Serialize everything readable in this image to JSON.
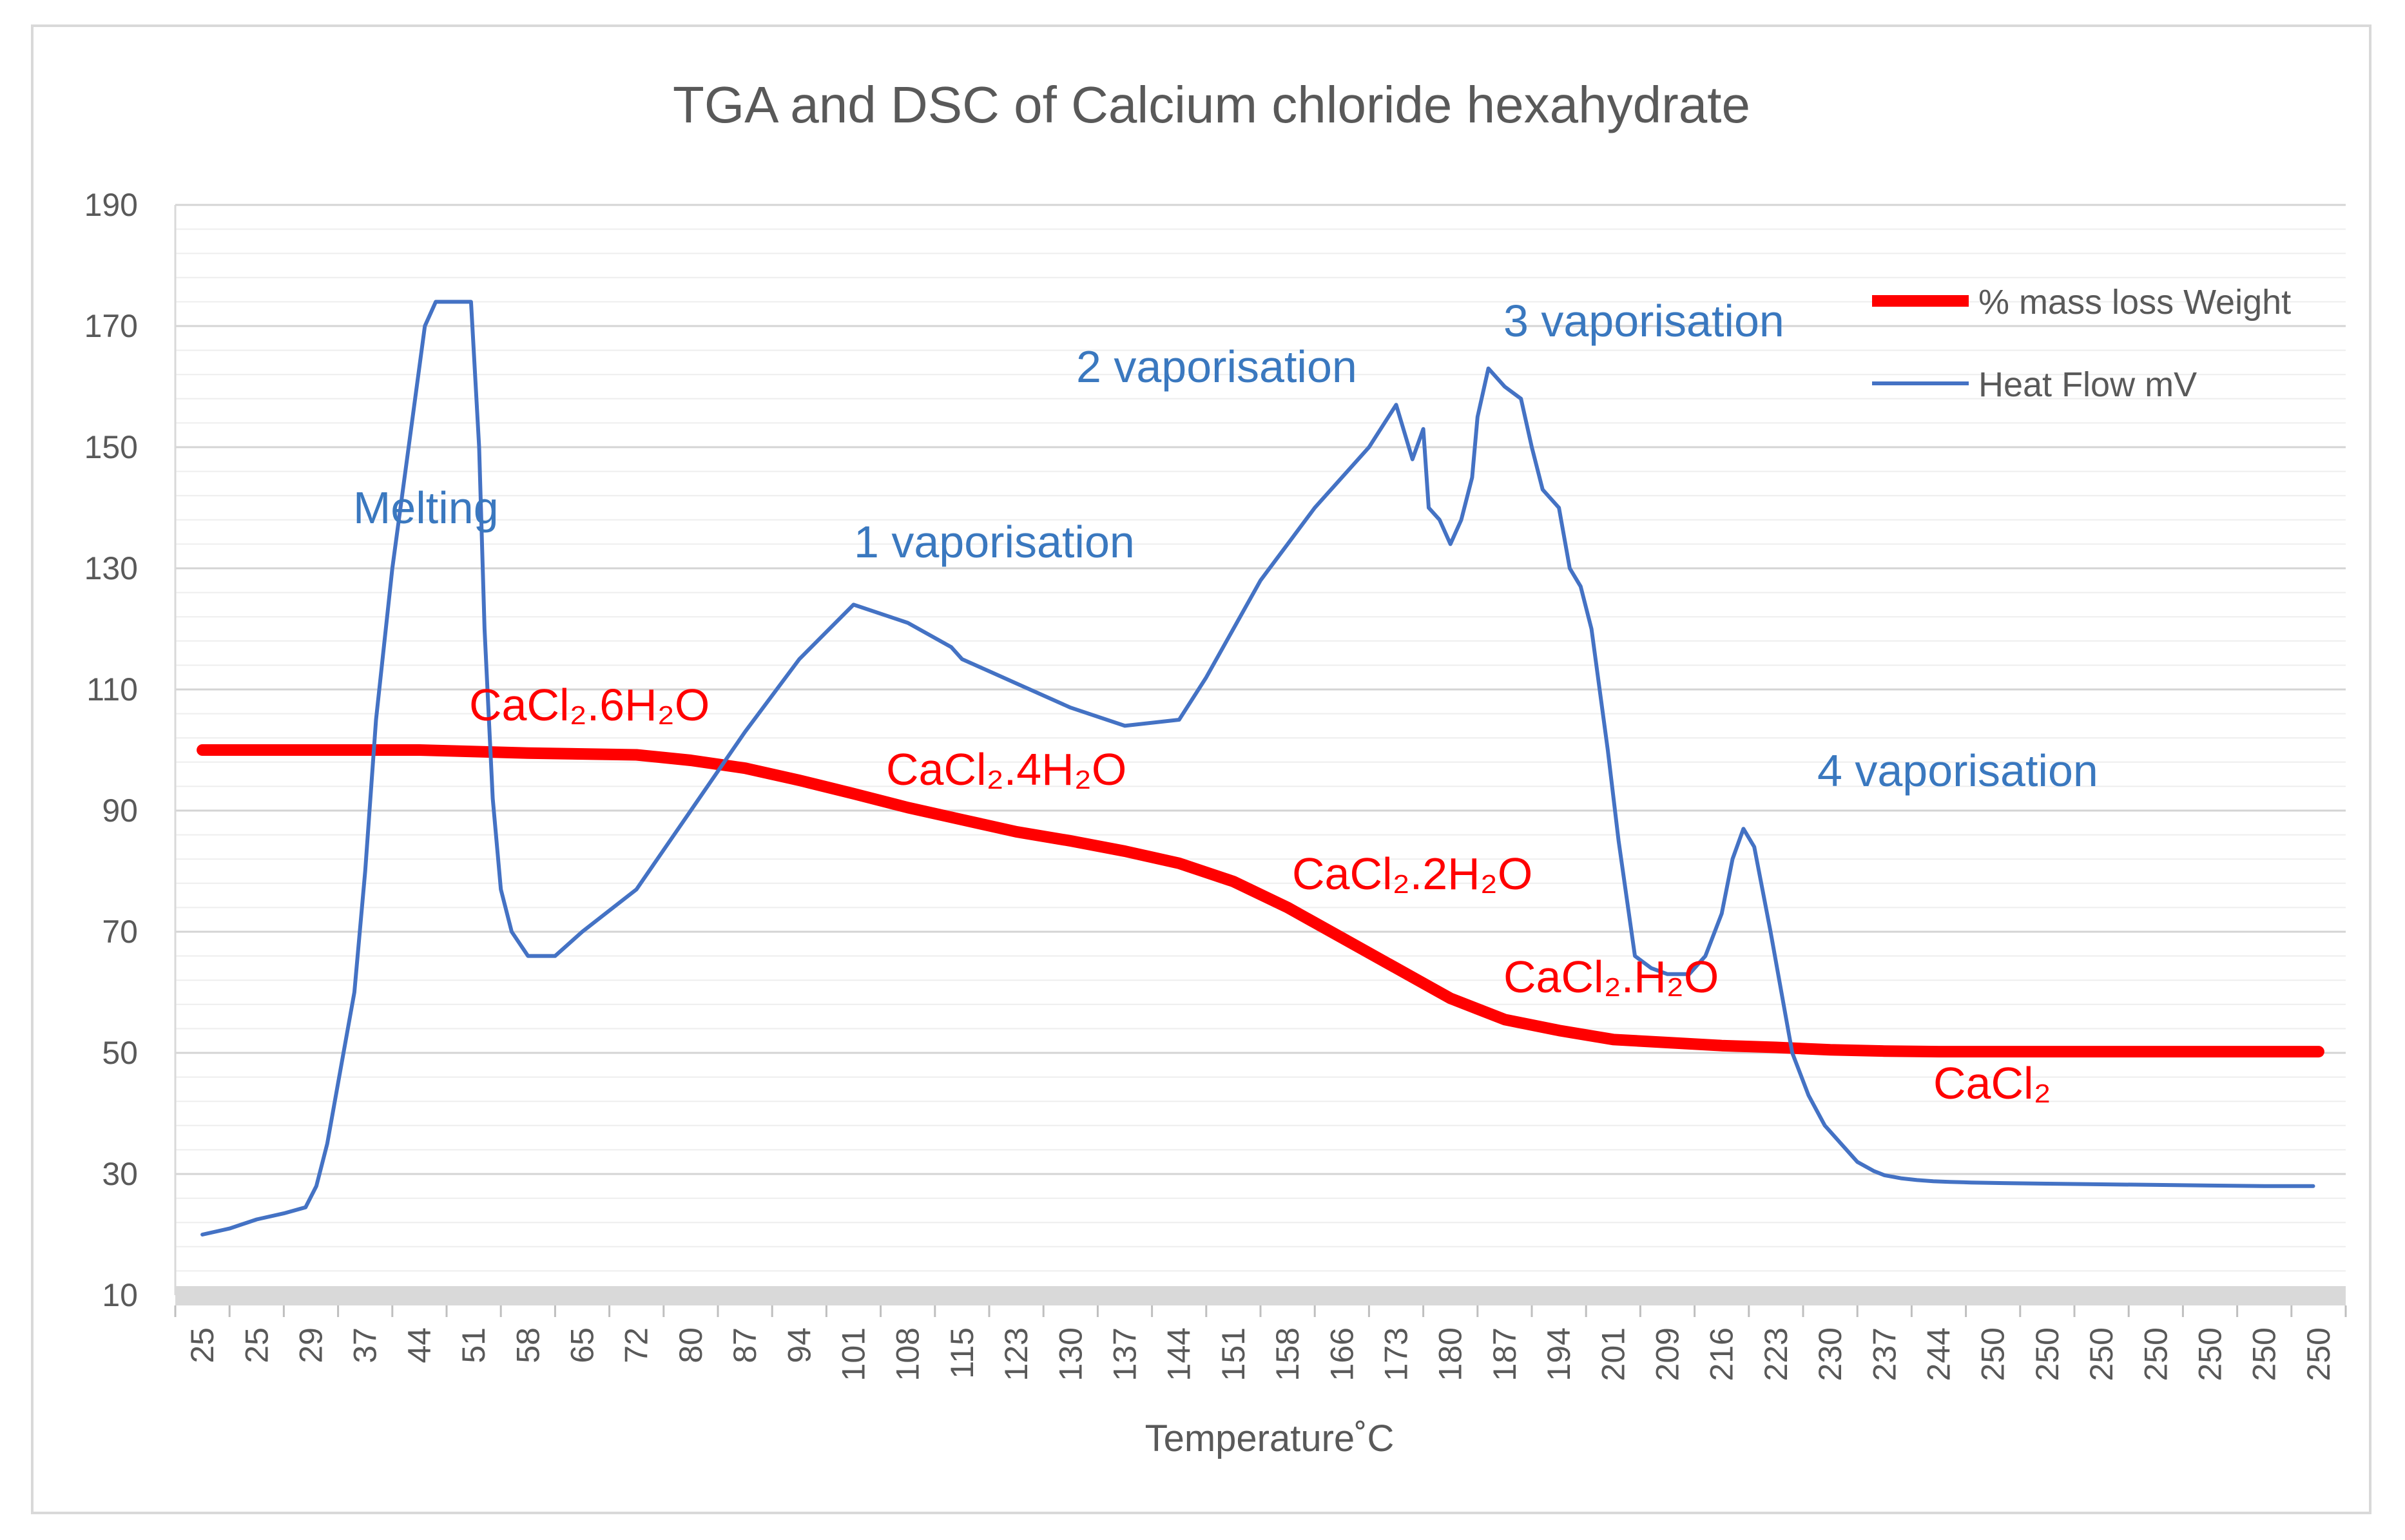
{
  "chart_data": {
    "type": "line",
    "title": "TGA and DSC of Calcium chloride hexahydrate",
    "xlabel": "Temperature˚C",
    "ylabel": "",
    "ylim": [
      10,
      190
    ],
    "yticks": [
      10,
      30,
      50,
      70,
      90,
      110,
      130,
      150,
      170,
      190
    ],
    "x_tick_labels": [
      "25",
      "25",
      "29",
      "37",
      "44",
      "51",
      "58",
      "65",
      "72",
      "80",
      "87",
      "94",
      "101",
      "108",
      "115",
      "123",
      "130",
      "137",
      "144",
      "151",
      "158",
      "166",
      "173",
      "180",
      "187",
      "194",
      "201",
      "209",
      "216",
      "223",
      "230",
      "237",
      "244",
      "250",
      "250",
      "250",
      "250",
      "250",
      "250",
      "250"
    ],
    "grid": true,
    "legend_position": "top-right",
    "series": [
      {
        "name": "% mass loss Weight",
        "color": "#ff0000",
        "x_index": [
          0,
          2,
          4,
          6,
          8,
          9,
          10,
          11,
          12,
          13,
          14,
          15,
          16,
          17,
          18,
          19,
          20,
          21,
          22,
          23,
          24,
          25,
          26,
          27,
          28,
          29,
          30,
          31,
          32,
          33,
          34,
          35,
          36,
          37,
          38,
          39
        ],
        "values": [
          100,
          100,
          100,
          99.5,
          99.2,
          98.3,
          97,
          95,
          92.8,
          90.5,
          88.5,
          86.5,
          85,
          83.3,
          81.3,
          78.3,
          74,
          69,
          64,
          59,
          55.5,
          53.7,
          52.2,
          51.7,
          51.2,
          50.9,
          50.5,
          50.3,
          50.2,
          50.2,
          50.2,
          50.2,
          50.2,
          50.2,
          50.2,
          50.2
        ]
      },
      {
        "name": "Heat Flow mV",
        "color": "#4472c4",
        "x_index": [
          0,
          0.5,
          1.0,
          1.5,
          1.9,
          2.1,
          2.3,
          2.5,
          2.8,
          3.0,
          3.2,
          3.5,
          3.8,
          4.1,
          4.3,
          4.5,
          4.7,
          4.95,
          5.1,
          5.2,
          5.35,
          5.5,
          5.7,
          6.0,
          6.5,
          7.0,
          8.0,
          9.0,
          10.0,
          11.0,
          12.0,
          13.0,
          13.8,
          14.0,
          14.5,
          15.0,
          16.0,
          17.0,
          18.0,
          18.5,
          19.0,
          19.5,
          20.0,
          20.5,
          21.0,
          21.5,
          22.0,
          22.3,
          22.5,
          22.6,
          22.8,
          23.0,
          23.2,
          23.4,
          23.5,
          23.7,
          24.0,
          24.3,
          24.5,
          24.7,
          25.0,
          25.2,
          25.4,
          25.6,
          25.9,
          26.1,
          26.4,
          26.7,
          27.0,
          27.4,
          27.7,
          28.0,
          28.2,
          28.4,
          28.6,
          28.9,
          29.3,
          29.6,
          29.9,
          30.2,
          30.5,
          30.8,
          31.0,
          31.3,
          31.6,
          31.9,
          32.2,
          32.6,
          33.2,
          34.0,
          35.0,
          36.0,
          37.0,
          38.0,
          38.9
        ],
        "values": [
          20,
          21,
          22.5,
          23.5,
          24.5,
          28,
          35,
          45,
          60,
          80,
          105,
          130,
          150,
          170,
          174,
          174,
          174,
          174,
          150,
          120,
          92,
          77,
          70,
          66,
          66,
          70,
          77,
          90,
          103,
          115,
          124,
          121,
          117,
          115,
          113,
          111,
          107,
          104,
          105,
          112,
          120,
          128,
          134,
          140,
          145,
          150,
          157,
          148,
          153,
          140,
          138,
          134,
          138,
          145,
          155,
          163,
          160,
          158,
          150,
          143,
          140,
          130,
          127,
          120,
          100,
          85,
          66,
          64,
          63,
          63,
          66,
          73,
          82,
          87,
          84,
          70,
          50,
          43,
          38,
          35,
          32,
          30.5,
          29.8,
          29.3,
          29,
          28.8,
          28.7,
          28.6,
          28.5,
          28.4,
          28.3,
          28.2,
          28.1,
          28,
          28
        ]
      }
    ],
    "annotations": {
      "melting": "Melting",
      "vap1": "1 vaporisation",
      "vap2": "2 vaporisation",
      "vap3": "3 vaporisation",
      "vap4": "4 vaporisation",
      "hexahydrate": "CaCl₂.6H₂O",
      "tetrahydrate": "CaCl₂.4H₂O",
      "dihydrate": "CaCl₂.2H₂O",
      "monohydrate": "CaCl₂.H₂O",
      "anhydrous": "CaCl₂"
    }
  }
}
